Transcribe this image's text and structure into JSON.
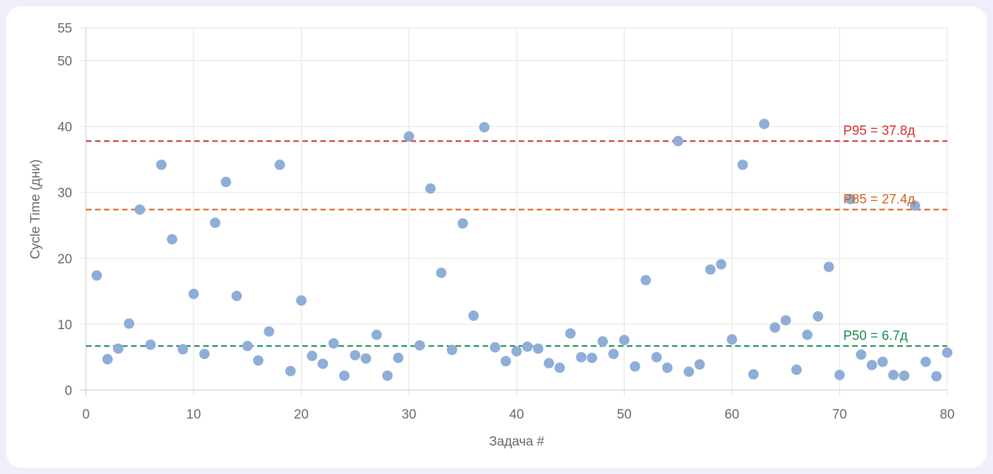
{
  "chart_data": {
    "type": "scatter",
    "title": "",
    "xlabel": "Задача #",
    "ylabel": "Cycle Time (дни)",
    "xlim": [
      0,
      80
    ],
    "ylim": [
      0,
      55
    ],
    "x_ticks": [
      0,
      10,
      20,
      30,
      40,
      50,
      60,
      70,
      80
    ],
    "y_ticks": [
      0,
      10,
      20,
      30,
      40,
      50,
      55
    ],
    "grid": true,
    "point_color": "#8eaed8",
    "series": [
      {
        "points": [
          [
            1,
            17.4
          ],
          [
            2,
            4.7
          ],
          [
            3,
            6.3
          ],
          [
            4,
            10.1
          ],
          [
            5,
            27.4
          ],
          [
            6,
            6.9
          ],
          [
            7,
            34.2
          ],
          [
            8,
            22.9
          ],
          [
            9,
            6.2
          ],
          [
            10,
            14.6
          ],
          [
            11,
            5.5
          ],
          [
            12,
            25.4
          ],
          [
            13,
            31.6
          ],
          [
            14,
            14.3
          ],
          [
            15,
            6.7
          ],
          [
            16,
            4.5
          ],
          [
            17,
            8.9
          ],
          [
            18,
            34.2
          ],
          [
            19,
            2.9
          ],
          [
            20,
            13.6
          ],
          [
            21,
            5.2
          ],
          [
            22,
            4.0
          ],
          [
            23,
            7.1
          ],
          [
            24,
            2.2
          ],
          [
            25,
            5.3
          ],
          [
            26,
            4.8
          ],
          [
            27,
            8.4
          ],
          [
            28,
            2.2
          ],
          [
            29,
            4.9
          ],
          [
            30,
            38.5
          ],
          [
            31,
            6.8
          ],
          [
            32,
            30.6
          ],
          [
            33,
            17.8
          ],
          [
            34,
            6.1
          ],
          [
            35,
            25.3
          ],
          [
            36,
            11.3
          ],
          [
            37,
            39.9
          ],
          [
            38,
            6.5
          ],
          [
            39,
            4.4
          ],
          [
            40,
            5.9
          ],
          [
            41,
            6.6
          ],
          [
            42,
            6.3
          ],
          [
            43,
            4.1
          ],
          [
            44,
            3.4
          ],
          [
            45,
            8.6
          ],
          [
            46,
            5.0
          ],
          [
            47,
            4.9
          ],
          [
            48,
            7.4
          ],
          [
            49,
            5.5
          ],
          [
            50,
            7.6
          ],
          [
            51,
            3.6
          ],
          [
            52,
            16.7
          ],
          [
            53,
            5.0
          ],
          [
            54,
            3.4
          ],
          [
            55,
            37.8
          ],
          [
            56,
            2.8
          ],
          [
            57,
            3.9
          ],
          [
            58,
            18.3
          ],
          [
            59,
            19.1
          ],
          [
            60,
            7.7
          ],
          [
            61,
            34.2
          ],
          [
            62,
            2.4
          ],
          [
            63,
            40.4
          ],
          [
            64,
            9.5
          ],
          [
            65,
            10.6
          ],
          [
            66,
            3.1
          ],
          [
            67,
            8.4
          ],
          [
            68,
            11.2
          ],
          [
            69,
            18.7
          ],
          [
            70,
            2.3
          ],
          [
            71,
            29.0
          ],
          [
            72,
            5.4
          ],
          [
            73,
            3.8
          ],
          [
            74,
            4.3
          ],
          [
            75,
            2.3
          ],
          [
            76,
            2.2
          ],
          [
            77,
            28.0
          ],
          [
            78,
            4.3
          ],
          [
            79,
            2.1
          ],
          [
            80,
            5.7
          ]
        ]
      }
    ],
    "reference_lines": [
      {
        "label": "P95 = 37.8д",
        "y": 37.8,
        "color": "#d12f2f"
      },
      {
        "label": "P85 = 27.4д",
        "y": 27.4,
        "color": "#dc5e12"
      },
      {
        "label": "P50 = 6.7д",
        "y": 6.7,
        "color": "#148a4d"
      }
    ],
    "legend": "none"
  }
}
